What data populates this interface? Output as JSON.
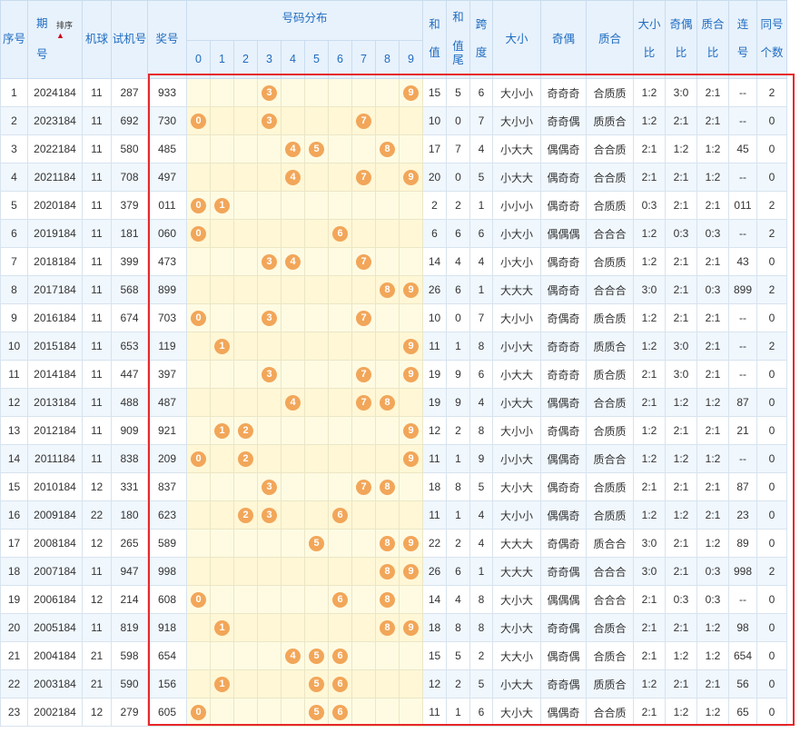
{
  "header": {
    "seq": "序号",
    "period_top": "期",
    "period_bottom": "号",
    "sort_label": "排序",
    "machine": "机球",
    "trial": "试机号",
    "prize": "奖号",
    "distribution": "号码分布",
    "digits": [
      "0",
      "1",
      "2",
      "3",
      "4",
      "5",
      "6",
      "7",
      "8",
      "9"
    ],
    "sum_top": "和",
    "sum_bottom": "值",
    "sumtail_top": "和",
    "sumtail_mid": "值",
    "sumtail_bottom": "尾",
    "span_top": "跨",
    "span_bottom": "度",
    "size": "大小",
    "parity": "奇偶",
    "prime": "质合",
    "size_ratio_top": "大小",
    "size_ratio_bottom": "比",
    "parity_ratio_top": "奇偶",
    "parity_ratio_bottom": "比",
    "prime_ratio_top": "质合",
    "prime_ratio_bottom": "比",
    "consec_top": "连",
    "consec_bottom": "号",
    "same_top": "同号",
    "same_bottom": "个数"
  },
  "rows": [
    {
      "seq": "1",
      "period": "2024184",
      "machine": "11",
      "trial": "287",
      "prize": "933",
      "balls": [
        3,
        9
      ],
      "sum": "15",
      "sumtail": "5",
      "span": "6",
      "size": "大小小",
      "parity": "奇奇奇",
      "prime": "合质质",
      "sratio": "1:2",
      "pratio": "3:0",
      "qratio": "2:1",
      "consec": "--",
      "same": "2"
    },
    {
      "seq": "2",
      "period": "2023184",
      "machine": "11",
      "trial": "692",
      "prize": "730",
      "balls": [
        0,
        3,
        7
      ],
      "sum": "10",
      "sumtail": "0",
      "span": "7",
      "size": "大小小",
      "parity": "奇奇偶",
      "prime": "质质合",
      "sratio": "1:2",
      "pratio": "2:1",
      "qratio": "2:1",
      "consec": "--",
      "same": "0"
    },
    {
      "seq": "3",
      "period": "2022184",
      "machine": "11",
      "trial": "580",
      "prize": "485",
      "balls": [
        4,
        5,
        8
      ],
      "sum": "17",
      "sumtail": "7",
      "span": "4",
      "size": "小大大",
      "parity": "偶偶奇",
      "prime": "合合质",
      "sratio": "2:1",
      "pratio": "1:2",
      "qratio": "1:2",
      "consec": "45",
      "same": "0"
    },
    {
      "seq": "4",
      "period": "2021184",
      "machine": "11",
      "trial": "708",
      "prize": "497",
      "balls": [
        4,
        7,
        9
      ],
      "sum": "20",
      "sumtail": "0",
      "span": "5",
      "size": "小大大",
      "parity": "偶奇奇",
      "prime": "合合质",
      "sratio": "2:1",
      "pratio": "2:1",
      "qratio": "1:2",
      "consec": "--",
      "same": "0"
    },
    {
      "seq": "5",
      "period": "2020184",
      "machine": "11",
      "trial": "379",
      "prize": "011",
      "balls": [
        0,
        1
      ],
      "sum": "2",
      "sumtail": "2",
      "span": "1",
      "size": "小小小",
      "parity": "偶奇奇",
      "prime": "合质质",
      "sratio": "0:3",
      "pratio": "2:1",
      "qratio": "2:1",
      "consec": "011",
      "same": "2"
    },
    {
      "seq": "6",
      "period": "2019184",
      "machine": "11",
      "trial": "181",
      "prize": "060",
      "balls": [
        0,
        6
      ],
      "sum": "6",
      "sumtail": "6",
      "span": "6",
      "size": "小大小",
      "parity": "偶偶偶",
      "prime": "合合合",
      "sratio": "1:2",
      "pratio": "0:3",
      "qratio": "0:3",
      "consec": "--",
      "same": "2"
    },
    {
      "seq": "7",
      "period": "2018184",
      "machine": "11",
      "trial": "399",
      "prize": "473",
      "balls": [
        3,
        4,
        7
      ],
      "sum": "14",
      "sumtail": "4",
      "span": "4",
      "size": "小大小",
      "parity": "偶奇奇",
      "prime": "合质质",
      "sratio": "1:2",
      "pratio": "2:1",
      "qratio": "2:1",
      "consec": "43",
      "same": "0"
    },
    {
      "seq": "8",
      "period": "2017184",
      "machine": "11",
      "trial": "568",
      "prize": "899",
      "balls": [
        8,
        9
      ],
      "sum": "26",
      "sumtail": "6",
      "span": "1",
      "size": "大大大",
      "parity": "偶奇奇",
      "prime": "合合合",
      "sratio": "3:0",
      "pratio": "2:1",
      "qratio": "0:3",
      "consec": "899",
      "same": "2"
    },
    {
      "seq": "9",
      "period": "2016184",
      "machine": "11",
      "trial": "674",
      "prize": "703",
      "balls": [
        0,
        3,
        7
      ],
      "sum": "10",
      "sumtail": "0",
      "span": "7",
      "size": "大小小",
      "parity": "奇偶奇",
      "prime": "质合质",
      "sratio": "1:2",
      "pratio": "2:1",
      "qratio": "2:1",
      "consec": "--",
      "same": "0"
    },
    {
      "seq": "10",
      "period": "2015184",
      "machine": "11",
      "trial": "653",
      "prize": "119",
      "balls": [
        1,
        9
      ],
      "sum": "11",
      "sumtail": "1",
      "span": "8",
      "size": "小小大",
      "parity": "奇奇奇",
      "prime": "质质合",
      "sratio": "1:2",
      "pratio": "3:0",
      "qratio": "2:1",
      "consec": "--",
      "same": "2"
    },
    {
      "seq": "11",
      "period": "2014184",
      "machine": "11",
      "trial": "447",
      "prize": "397",
      "balls": [
        3,
        7,
        9
      ],
      "sum": "19",
      "sumtail": "9",
      "span": "6",
      "size": "小大大",
      "parity": "奇奇奇",
      "prime": "质合质",
      "sratio": "2:1",
      "pratio": "3:0",
      "qratio": "2:1",
      "consec": "--",
      "same": "0"
    },
    {
      "seq": "12",
      "period": "2013184",
      "machine": "11",
      "trial": "488",
      "prize": "487",
      "balls": [
        4,
        7,
        8
      ],
      "sum": "19",
      "sumtail": "9",
      "span": "4",
      "size": "小大大",
      "parity": "偶偶奇",
      "prime": "合合质",
      "sratio": "2:1",
      "pratio": "1:2",
      "qratio": "1:2",
      "consec": "87",
      "same": "0"
    },
    {
      "seq": "13",
      "period": "2012184",
      "machine": "11",
      "trial": "909",
      "prize": "921",
      "balls": [
        1,
        2,
        9
      ],
      "sum": "12",
      "sumtail": "2",
      "span": "8",
      "size": "大小小",
      "parity": "奇偶奇",
      "prime": "合质质",
      "sratio": "1:2",
      "pratio": "2:1",
      "qratio": "2:1",
      "consec": "21",
      "same": "0"
    },
    {
      "seq": "14",
      "period": "2011184",
      "machine": "11",
      "trial": "838",
      "prize": "209",
      "balls": [
        0,
        2,
        9
      ],
      "sum": "11",
      "sumtail": "1",
      "span": "9",
      "size": "小小大",
      "parity": "偶偶奇",
      "prime": "质合合",
      "sratio": "1:2",
      "pratio": "1:2",
      "qratio": "1:2",
      "consec": "--",
      "same": "0"
    },
    {
      "seq": "15",
      "period": "2010184",
      "machine": "12",
      "trial": "331",
      "prize": "837",
      "balls": [
        3,
        7,
        8
      ],
      "sum": "18",
      "sumtail": "8",
      "span": "5",
      "size": "大小大",
      "parity": "偶奇奇",
      "prime": "合质质",
      "sratio": "2:1",
      "pratio": "2:1",
      "qratio": "2:1",
      "consec": "87",
      "same": "0"
    },
    {
      "seq": "16",
      "period": "2009184",
      "machine": "22",
      "trial": "180",
      "prize": "623",
      "balls": [
        2,
        3,
        6
      ],
      "sum": "11",
      "sumtail": "1",
      "span": "4",
      "size": "大小小",
      "parity": "偶偶奇",
      "prime": "合质质",
      "sratio": "1:2",
      "pratio": "1:2",
      "qratio": "2:1",
      "consec": "23",
      "same": "0"
    },
    {
      "seq": "17",
      "period": "2008184",
      "machine": "12",
      "trial": "265",
      "prize": "589",
      "balls": [
        5,
        8,
        9
      ],
      "sum": "22",
      "sumtail": "2",
      "span": "4",
      "size": "大大大",
      "parity": "奇偶奇",
      "prime": "质合合",
      "sratio": "3:0",
      "pratio": "2:1",
      "qratio": "1:2",
      "consec": "89",
      "same": "0"
    },
    {
      "seq": "18",
      "period": "2007184",
      "machine": "11",
      "trial": "947",
      "prize": "998",
      "balls": [
        8,
        9
      ],
      "sum": "26",
      "sumtail": "6",
      "span": "1",
      "size": "大大大",
      "parity": "奇奇偶",
      "prime": "合合合",
      "sratio": "3:0",
      "pratio": "2:1",
      "qratio": "0:3",
      "consec": "998",
      "same": "2"
    },
    {
      "seq": "19",
      "period": "2006184",
      "machine": "12",
      "trial": "214",
      "prize": "608",
      "balls": [
        0,
        6,
        8
      ],
      "sum": "14",
      "sumtail": "4",
      "span": "8",
      "size": "大小大",
      "parity": "偶偶偶",
      "prime": "合合合",
      "sratio": "2:1",
      "pratio": "0:3",
      "qratio": "0:3",
      "consec": "--",
      "same": "0"
    },
    {
      "seq": "20",
      "period": "2005184",
      "machine": "11",
      "trial": "819",
      "prize": "918",
      "balls": [
        1,
        8,
        9
      ],
      "sum": "18",
      "sumtail": "8",
      "span": "8",
      "size": "大小大",
      "parity": "奇奇偶",
      "prime": "合质合",
      "sratio": "2:1",
      "pratio": "2:1",
      "qratio": "1:2",
      "consec": "98",
      "same": "0"
    },
    {
      "seq": "21",
      "period": "2004184",
      "machine": "21",
      "trial": "598",
      "prize": "654",
      "balls": [
        4,
        5,
        6
      ],
      "sum": "15",
      "sumtail": "5",
      "span": "2",
      "size": "大大小",
      "parity": "偶奇偶",
      "prime": "合质合",
      "sratio": "2:1",
      "pratio": "1:2",
      "qratio": "1:2",
      "consec": "654",
      "same": "0"
    },
    {
      "seq": "22",
      "period": "2003184",
      "machine": "21",
      "trial": "590",
      "prize": "156",
      "balls": [
        1,
        5,
        6
      ],
      "sum": "12",
      "sumtail": "2",
      "span": "5",
      "size": "小大大",
      "parity": "奇奇偶",
      "prime": "质质合",
      "sratio": "1:2",
      "pratio": "2:1",
      "qratio": "2:1",
      "consec": "56",
      "same": "0"
    },
    {
      "seq": "23",
      "period": "2002184",
      "machine": "12",
      "trial": "279",
      "prize": "605",
      "balls": [
        0,
        5,
        6
      ],
      "sum": "11",
      "sumtail": "1",
      "span": "6",
      "size": "大小大",
      "parity": "偶偶奇",
      "prime": "合合质",
      "sratio": "2:1",
      "pratio": "1:2",
      "qratio": "1:2",
      "consec": "65",
      "same": "0"
    }
  ],
  "colors": {
    "ball": "#f2a659",
    "highlight": "#e8262a",
    "header_text": "#1f6cc1"
  }
}
